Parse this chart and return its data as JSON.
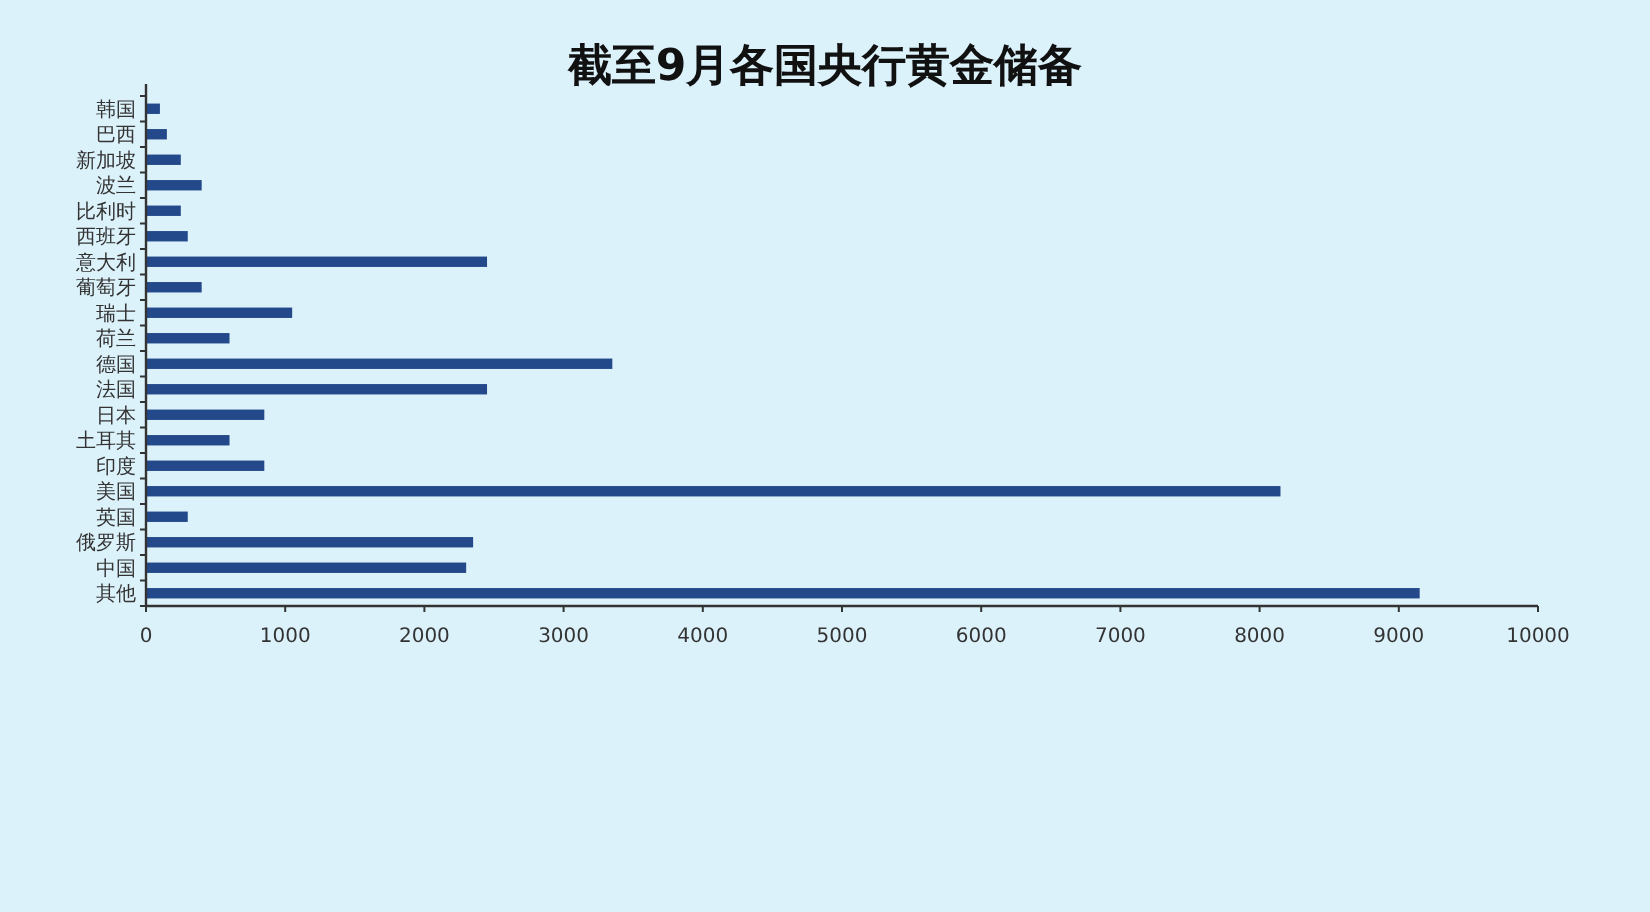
{
  "chart_data": {
    "type": "bar",
    "orientation": "horizontal",
    "title": "截至9月各国央行黄金储备",
    "categories": [
      "韩国",
      "巴西",
      "新加坡",
      "波兰",
      "比利时",
      "西班牙",
      "意大利",
      "葡萄牙",
      "瑞士",
      "荷兰",
      "德国",
      "法国",
      "日本",
      "土耳其",
      "印度",
      "美国",
      "英国",
      "俄罗斯",
      "中国",
      "其他"
    ],
    "values": [
      100,
      150,
      250,
      400,
      250,
      300,
      2450,
      400,
      1050,
      600,
      3350,
      2450,
      850,
      600,
      850,
      8150,
      300,
      2350,
      2300,
      9150
    ],
    "color": "#24498a",
    "xlim": [
      0,
      10000
    ],
    "xticks": [
      0,
      1000,
      2000,
      3000,
      4000,
      5000,
      6000,
      7000,
      8000,
      9000,
      10000
    ],
    "grid": false
  }
}
